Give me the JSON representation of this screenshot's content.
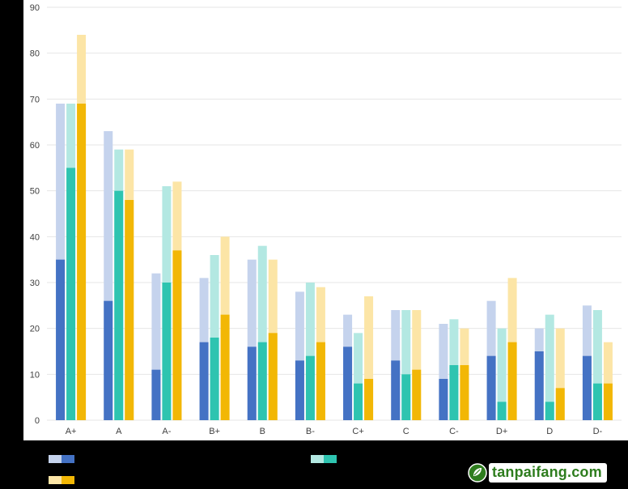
{
  "chart_data": {
    "type": "bar",
    "categories": [
      "A+",
      "A",
      "A-",
      "B+",
      "B",
      "B-",
      "C+",
      "C",
      "C-",
      "D+",
      "D",
      "D-"
    ],
    "series": [
      {
        "values": [
          35,
          26,
          11,
          17,
          16,
          13,
          16,
          13,
          9,
          14,
          15,
          14
        ],
        "totals": [
          69,
          63,
          32,
          31,
          35,
          28,
          23,
          24,
          21,
          26,
          20,
          25
        ]
      },
      {
        "values": [
          55,
          50,
          30,
          18,
          17,
          14,
          8,
          10,
          12,
          4,
          4,
          8
        ],
        "totals": [
          69,
          59,
          51,
          36,
          38,
          30,
          19,
          24,
          22,
          20,
          23,
          24
        ]
      },
      {
        "values": [
          69,
          48,
          37,
          23,
          19,
          17,
          9,
          11,
          12,
          17,
          7,
          8
        ],
        "totals": [
          84,
          59,
          52,
          40,
          35,
          29,
          27,
          24,
          20,
          31,
          20,
          17
        ]
      }
    ],
    "ylim": [
      0,
      90
    ],
    "yticks": [
      0,
      10,
      20,
      30,
      40,
      50,
      60,
      70,
      80,
      90
    ],
    "grid": true,
    "legend_position": "bottom",
    "colors": {
      "series": [
        {
          "dark": "#4472c4",
          "light": "#c5d3ed"
        },
        {
          "dark": "#2ec4b0",
          "light": "#b3e8e2"
        },
        {
          "dark": "#f2b705",
          "light": "#fce5a6"
        }
      ],
      "grid": "#e6e6e6",
      "axis_text": "#404040"
    }
  },
  "watermark": {
    "text": "tanpaifang.com",
    "logo": "leaf-circle-logo"
  }
}
